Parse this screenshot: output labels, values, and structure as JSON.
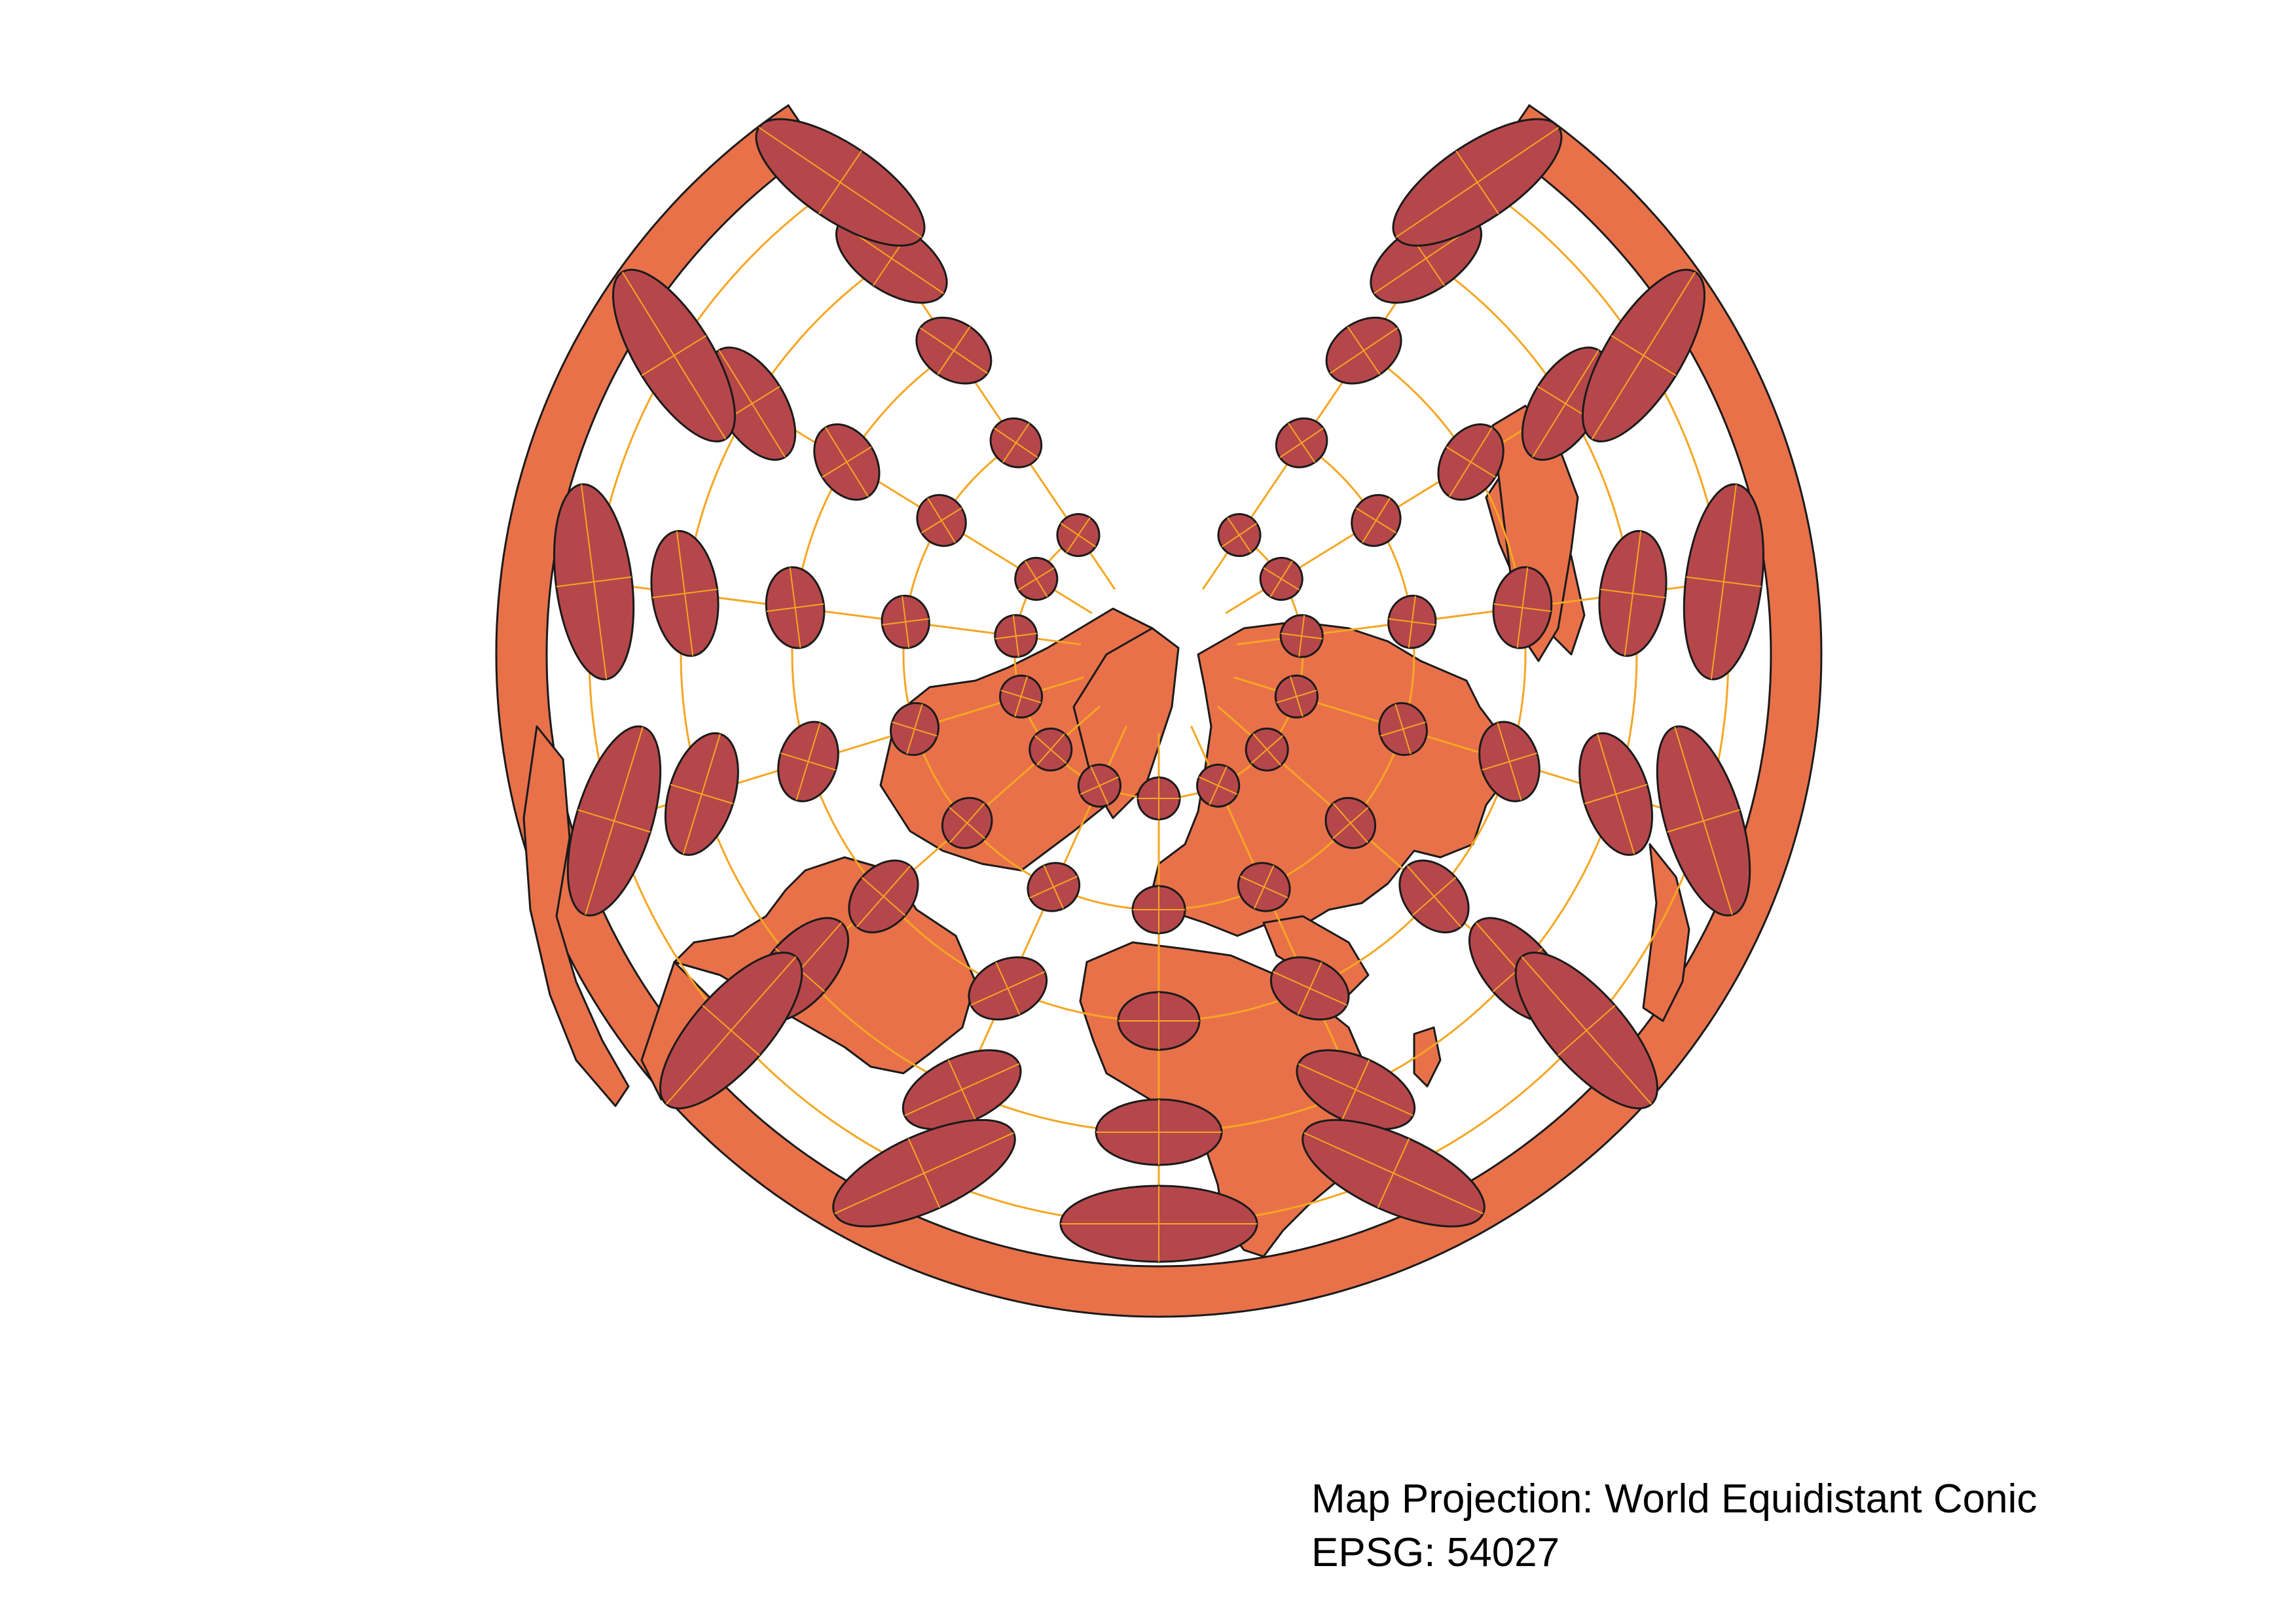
{
  "map": {
    "projection_label": "Map Projection: World Equidistant Conic",
    "epsg_label": "EPSG: 54027",
    "projection_name": "World Equidistant Conic",
    "epsg_code": "54027",
    "colors": {
      "land": "#e8714a",
      "tissot_ellipse": "#b5474b",
      "graticule": "#f5a623",
      "outline": "#1a1a1a",
      "background": "#ffffff"
    },
    "graticule": {
      "parallels_deg": [
        -60,
        -30,
        0,
        30,
        60
      ],
      "meridians_deg": [
        -150,
        -120,
        -90,
        -60,
        -30,
        0,
        30,
        60,
        90,
        120,
        150
      ]
    },
    "tissot_indicatrix": true
  }
}
